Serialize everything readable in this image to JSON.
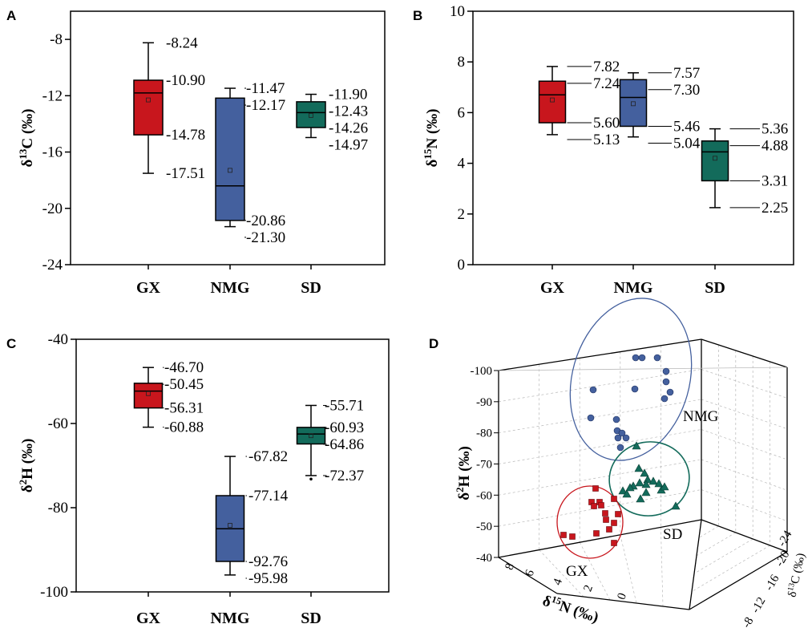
{
  "chart_data": [
    {
      "type": "box",
      "panel": "A",
      "ylabel_main": "δ",
      "ylabel_sup": "13",
      "ylabel_rest": "C (‰)",
      "ylim": [
        -24,
        -6
      ],
      "yticks": [
        -8,
        -12,
        -16,
        -20,
        -24
      ],
      "categories": [
        "GX",
        "NMG",
        "SD"
      ],
      "colors": [
        "#c8161d",
        "#44609e",
        "#136b5b"
      ],
      "boxes": [
        {
          "max": -8.24,
          "q3": -10.9,
          "median": -11.8,
          "mean": -12.3,
          "q1": -14.78,
          "min": -17.51,
          "labels": [
            "-8.24",
            "-10.90",
            "-14.78",
            "-17.51"
          ]
        },
        {
          "max": -11.47,
          "q3": -12.17,
          "median": -18.4,
          "mean": -17.3,
          "q1": -20.86,
          "min": -21.3,
          "labels": [
            "-11.47",
            "-12.17",
            "-20.86",
            "-21.30"
          ]
        },
        {
          "max": -11.9,
          "q3": -12.43,
          "median": -13.2,
          "mean": -13.4,
          "q1": -14.26,
          "min": -14.97,
          "labels": [
            "-11.90",
            "-12.43",
            "-14.26",
            "-14.97"
          ]
        }
      ]
    },
    {
      "type": "box",
      "panel": "B",
      "ylabel_main": "δ",
      "ylabel_sup": "15",
      "ylabel_rest": "N (‰)",
      "ylim": [
        0,
        10
      ],
      "yticks": [
        10,
        8,
        6,
        4,
        2,
        0
      ],
      "categories": [
        "GX",
        "NMG",
        "SD"
      ],
      "colors": [
        "#c8161d",
        "#44609e",
        "#136b5b"
      ],
      "boxes": [
        {
          "max": 7.82,
          "q3": 7.24,
          "median": 6.7,
          "mean": 6.5,
          "q1": 5.6,
          "min": 5.13,
          "labels": [
            "7.82",
            "7.24",
            "5.60",
            "5.13"
          ]
        },
        {
          "max": 7.57,
          "q3": 7.3,
          "median": 6.6,
          "mean": 6.35,
          "q1": 5.46,
          "min": 5.04,
          "labels": [
            "7.57",
            "7.30",
            "5.46",
            "5.04"
          ]
        },
        {
          "max": 5.36,
          "q3": 4.88,
          "median": 4.45,
          "mean": 4.2,
          "q1": 3.31,
          "min": 2.25,
          "labels": [
            "5.36",
            "4.88",
            "3.31",
            "2.25"
          ]
        }
      ]
    },
    {
      "type": "box",
      "panel": "C",
      "ylabel_main": "δ",
      "ylabel_sup": "2",
      "ylabel_rest": "H (‰)",
      "ylim": [
        -100,
        -40
      ],
      "yticks": [
        -40,
        -60,
        -80,
        -100
      ],
      "categories": [
        "GX",
        "NMG",
        "SD"
      ],
      "colors": [
        "#c8161d",
        "#44609e",
        "#136b5b"
      ],
      "boxes": [
        {
          "max": -46.7,
          "q3": -50.45,
          "median": -52.3,
          "mean": -52.9,
          "q1": -56.31,
          "min": -60.88,
          "labels": [
            "-46.70",
            "-50.45",
            "-56.31",
            "-60.88"
          ]
        },
        {
          "max": -67.82,
          "q3": -77.14,
          "median": -85.0,
          "mean": -84.2,
          "q1": -92.76,
          "min": -95.98,
          "labels": [
            "-67.82",
            "-77.14",
            "-92.76",
            "-95.98"
          ]
        },
        {
          "max": -55.71,
          "q3": -60.93,
          "median": -62.5,
          "mean": -62.9,
          "q1": -64.86,
          "min": -72.37,
          "labels": [
            "-55.71",
            "-60.93",
            "-64.86",
            "-72.37"
          ],
          "outlier": -73.2
        }
      ]
    },
    {
      "type": "scatter3d",
      "panel": "D",
      "zlabel_main": "δ",
      "zlabel_sup": "2",
      "zlabel_rest": "H (‰)",
      "xlabel_main": "δ",
      "xlabel_sup": "15",
      "xlabel_rest": "N (‰)",
      "ylabel_main": "δ",
      "ylabel_sup": "13",
      "ylabel_rest": "C (‰)",
      "zticks": [
        "-100",
        "-90",
        "-80",
        "-70",
        "-60",
        "-50",
        "-40"
      ],
      "xticks": [
        "8",
        "6",
        "4",
        "2",
        "0"
      ],
      "yticks": [
        "-24",
        "-20",
        "-16",
        "-12",
        "-8"
      ],
      "groups": [
        {
          "name": "NMG",
          "marker": "circle",
          "color": "#44609e"
        },
        {
          "name": "SD",
          "marker": "triangle",
          "color": "#136b5b"
        },
        {
          "name": "GX",
          "marker": "square",
          "color": "#c8161d"
        }
      ]
    }
  ]
}
